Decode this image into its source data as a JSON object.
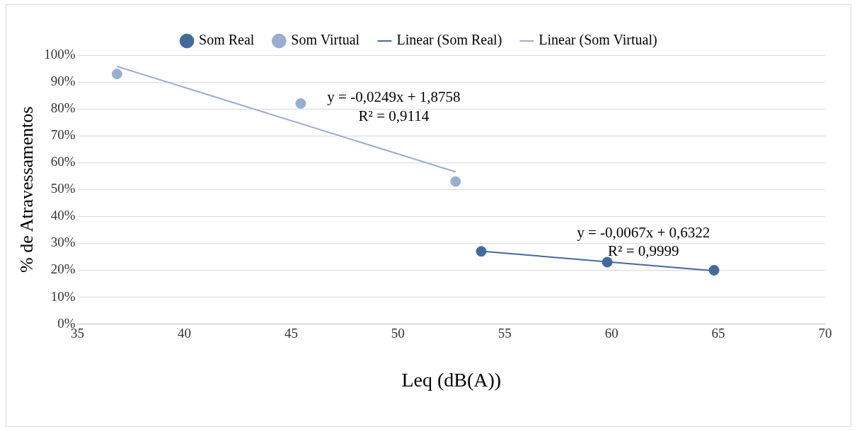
{
  "chart_data": {
    "type": "scatter",
    "xlabel": "Leq (dB(A))",
    "ylabel": "% de Atravessamentos",
    "series": [
      {
        "name": "Som Real",
        "type": "scatter",
        "color": "#44699b",
        "marker": "circle",
        "x": [
          53.9,
          59.8,
          64.8
        ],
        "values": [
          27,
          23,
          20
        ]
      },
      {
        "name": "Som Virtual",
        "type": "scatter",
        "color": "#98aed1",
        "marker": "circle",
        "x": [
          36.85,
          45.45,
          52.7
        ],
        "values": [
          93,
          82,
          53
        ]
      },
      {
        "name": "Linear (Som Real)",
        "type": "line",
        "color": "#44699b",
        "marker": "none",
        "x": [
          53.9,
          64.8
        ],
        "values": [
          27.1,
          19.8
        ]
      },
      {
        "name": "Linear (Som Virtual)",
        "type": "line",
        "color": "#98aed1",
        "marker": "none",
        "x": [
          36.85,
          52.7
        ],
        "values": [
          95.8,
          56.6
        ]
      }
    ],
    "xlim": [
      35,
      70
    ],
    "xticks": [
      35,
      40,
      45,
      50,
      55,
      60,
      65,
      70
    ],
    "ylim": [
      0,
      100
    ],
    "yticks": [
      {
        "value": 0,
        "label": "0%"
      },
      {
        "value": 10,
        "label": "10%"
      },
      {
        "value": 20,
        "label": "20%"
      },
      {
        "value": 30,
        "label": "30%"
      },
      {
        "value": 40,
        "label": "40%"
      },
      {
        "value": 50,
        "label": "50%"
      },
      {
        "value": 60,
        "label": "60%"
      },
      {
        "value": 70,
        "label": "70%"
      },
      {
        "value": 80,
        "label": "80%"
      },
      {
        "value": 90,
        "label": "90%"
      },
      {
        "value": 100,
        "label": "100%"
      }
    ],
    "annotations": [
      "y = -0,0249x + 1,8758",
      "R² = 0,9114",
      "y = -0,0067x + 0,6322",
      "R² = 0,9999"
    ],
    "grid": "y",
    "legend": "top",
    "line_style": "solid"
  }
}
